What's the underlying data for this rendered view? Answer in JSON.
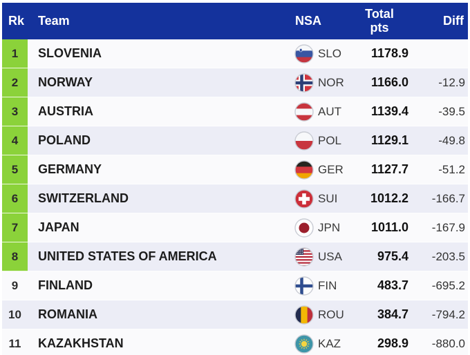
{
  "colors": {
    "header_bg": "#14329c",
    "header_text": "#ffffff",
    "highlight_green": "#8bd23a",
    "row_odd": "#fafafc",
    "row_even": "#ecedf6"
  },
  "table": {
    "columns": {
      "rk": "Rk",
      "team": "Team",
      "nsa": "NSA",
      "total": "Total pts",
      "diff": "Diff"
    },
    "rows": [
      {
        "rank": "1",
        "team": "SLOVENIA",
        "nsa": "SLO",
        "total": "1178.9",
        "diff": "",
        "highlighted": true,
        "flag": {
          "type": "hstripes",
          "colors": [
            "#f7f8fa",
            "#3956a3",
            "#c43540"
          ],
          "emblem": "shield"
        }
      },
      {
        "rank": "2",
        "team": "NORWAY",
        "nsa": "NOR",
        "total": "1166.0",
        "diff": "-12.9",
        "highlighted": true,
        "flag": {
          "type": "nordic",
          "bg": "#d0353f",
          "outer": "#ffffff",
          "inner": "#2b3f77"
        }
      },
      {
        "rank": "3",
        "team": "AUSTRIA",
        "nsa": "AUT",
        "total": "1139.4",
        "diff": "-39.5",
        "highlighted": true,
        "flag": {
          "type": "hstripes",
          "colors": [
            "#c8353e",
            "#f7f8fa",
            "#c8353e"
          ]
        }
      },
      {
        "rank": "4",
        "team": "POLAND",
        "nsa": "POL",
        "total": "1129.1",
        "diff": "-49.8",
        "highlighted": true,
        "flag": {
          "type": "hstripes",
          "colors": [
            "#f7f8fa",
            "#c8353e"
          ]
        }
      },
      {
        "rank": "5",
        "team": "GERMANY",
        "nsa": "GER",
        "total": "1127.7",
        "diff": "-51.2",
        "highlighted": true,
        "flag": {
          "type": "hstripes",
          "colors": [
            "#26251f",
            "#d4383f",
            "#f0a500"
          ]
        }
      },
      {
        "rank": "6",
        "team": "SWITZERLAND",
        "nsa": "SUI",
        "total": "1012.2",
        "diff": "-166.7",
        "highlighted": true,
        "flag": {
          "type": "cross",
          "bg": "#cc2f3a",
          "cross": "#ffffff"
        }
      },
      {
        "rank": "7",
        "team": "JAPAN",
        "nsa": "JPN",
        "total": "1011.0",
        "diff": "-167.9",
        "highlighted": true,
        "flag": {
          "type": "disc",
          "bg": "#fdfdfd",
          "disc": "#9c1f2c"
        }
      },
      {
        "rank": "8",
        "team": "UNITED STATES OF AMERICA",
        "nsa": "USA",
        "total": "975.4",
        "diff": "-203.5",
        "highlighted": true,
        "flag": {
          "type": "usa",
          "red": "#b22234",
          "white": "#ffffff",
          "canton": "#2c2f55"
        }
      },
      {
        "rank": "9",
        "team": "FINLAND",
        "nsa": "FIN",
        "total": "483.7",
        "diff": "-695.2",
        "highlighted": false,
        "flag": {
          "type": "nordic",
          "bg": "#fdfdfd",
          "outer": null,
          "inner": "#2f4d8f"
        }
      },
      {
        "rank": "10",
        "team": "ROMANIA",
        "nsa": "ROU",
        "total": "384.7",
        "diff": "-794.2",
        "highlighted": false,
        "flag": {
          "type": "vstripes",
          "colors": [
            "#232c4e",
            "#f2b705",
            "#bd303c"
          ]
        }
      },
      {
        "rank": "11",
        "team": "KAZAKHSTAN",
        "nsa": "KAZ",
        "total": "298.9",
        "diff": "-880.0",
        "highlighted": false,
        "flag": {
          "type": "kaz",
          "bg": "#3e95a8",
          "sun": "#f4d442"
        }
      }
    ]
  }
}
